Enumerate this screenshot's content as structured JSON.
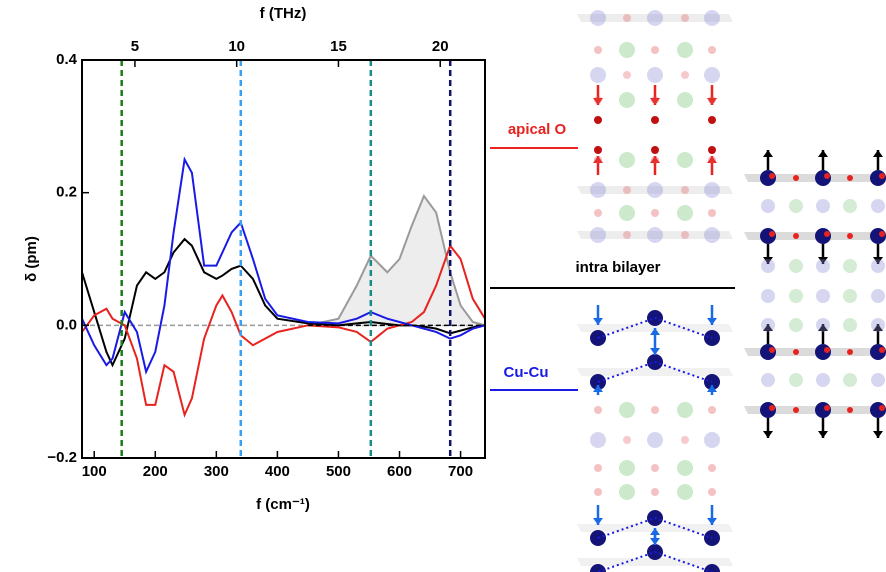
{
  "chart_data": {
    "type": "line",
    "x_label": "f (cm⁻¹)",
    "x2_label": "f (THz)",
    "y_label": "δ (pm)",
    "x": [
      80,
      100,
      120,
      130,
      150,
      170,
      185,
      200,
      215,
      230,
      248,
      260,
      280,
      300,
      310,
      325,
      340,
      360,
      380,
      400,
      450,
      500,
      530,
      553,
      580,
      600,
      620,
      640,
      660,
      683,
      700,
      720,
      740
    ],
    "series": [
      {
        "name": "gray",
        "color": "#9a9a9a",
        "fill": "#ededed",
        "values": [
          null,
          null,
          null,
          null,
          null,
          null,
          null,
          null,
          null,
          null,
          null,
          null,
          null,
          null,
          null,
          null,
          null,
          null,
          null,
          null,
          0.0,
          0.01,
          0.06,
          0.105,
          0.08,
          0.1,
          0.15,
          0.195,
          0.17,
          0.08,
          0.03,
          0.005,
          0.0
        ]
      },
      {
        "name": "black",
        "color": "#000000",
        "values": [
          0.08,
          0.02,
          -0.04,
          -0.06,
          -0.02,
          0.06,
          0.08,
          0.07,
          0.08,
          0.11,
          0.13,
          0.12,
          0.08,
          0.07,
          0.075,
          0.085,
          0.09,
          0.07,
          0.03,
          0.01,
          0.003,
          0.0,
          0.003,
          0.005,
          0.002,
          0.0,
          0.0,
          -0.002,
          -0.005,
          -0.012,
          -0.008,
          -0.003,
          0.0
        ]
      },
      {
        "name": "red",
        "color": "#e8231f",
        "values": [
          -0.01,
          0.015,
          0.025,
          0.01,
          0.0,
          -0.05,
          -0.12,
          -0.12,
          -0.06,
          -0.07,
          -0.135,
          -0.11,
          -0.02,
          0.03,
          0.045,
          0.02,
          -0.015,
          -0.03,
          -0.02,
          -0.01,
          0.0,
          -0.003,
          -0.01,
          -0.025,
          -0.005,
          0.0,
          0.005,
          0.02,
          0.06,
          0.12,
          0.1,
          0.04,
          0.01
        ]
      },
      {
        "name": "blue",
        "color": "#1a1ae6",
        "values": [
          0.01,
          -0.03,
          -0.06,
          -0.05,
          0.02,
          -0.01,
          -0.07,
          -0.04,
          0.03,
          0.14,
          0.25,
          0.23,
          0.09,
          0.09,
          0.11,
          0.14,
          0.155,
          0.1,
          0.04,
          0.015,
          0.005,
          0.003,
          0.01,
          0.02,
          0.01,
          0.005,
          0.0,
          -0.005,
          -0.01,
          -0.02,
          -0.015,
          -0.005,
          0.0
        ]
      }
    ],
    "vlines": [
      {
        "x": 145,
        "color": "#1b7d1b"
      },
      {
        "x": 340,
        "color": "#3aa0f0"
      },
      {
        "x": 553,
        "color": "#1a8a8a"
      },
      {
        "x": 683,
        "color": "#10106e"
      }
    ],
    "xlim": [
      80,
      740
    ],
    "xticks": [
      100,
      200,
      300,
      400,
      500,
      600,
      700
    ],
    "x2lim": [
      2.4,
      22.2
    ],
    "x2ticks": [
      5,
      10,
      15,
      20
    ],
    "ylim": [
      -0.2,
      0.4
    ],
    "yticks": [
      {
        "value": -0.2,
        "label": "−0.2"
      },
      {
        "value": 0,
        "label": "0.0"
      },
      0.2,
      0.4
    ],
    "annotations": [
      {
        "text": "apical O",
        "color": "#e8231f"
      },
      {
        "text": "intra bilayer",
        "color": "#000000"
      },
      {
        "text": "Cu-Cu",
        "color": "#1a1ae6"
      }
    ]
  }
}
